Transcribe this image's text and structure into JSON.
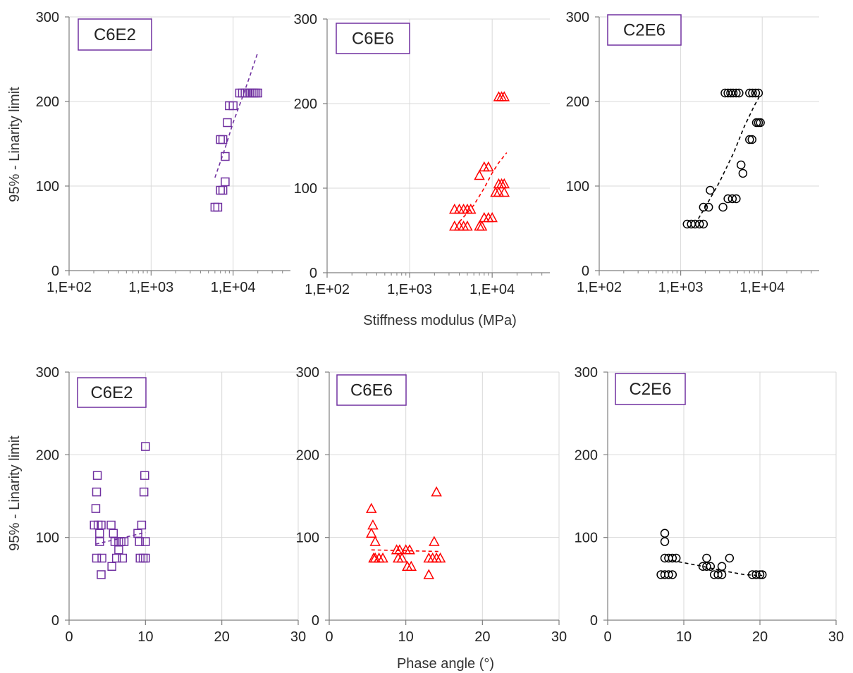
{
  "figure": {
    "ylabel_top": "95% - Linarity limit",
    "ylabel_bottom": "95% - Linarity limit",
    "xlabel_top": "Stiffness modulus (MPa)",
    "xlabel_bottom": "Phase angle (°)"
  },
  "chart_data": [
    {
      "type": "scatter",
      "title": "C6E2",
      "xscale": "log",
      "xlim": [
        100,
        50000
      ],
      "ylim": [
        0,
        300
      ],
      "xticks": [
        {
          "v": 100,
          "label": "1,E+02"
        },
        {
          "v": 1000,
          "label": "1,E+03"
        },
        {
          "v": 10000,
          "label": "1,E+04"
        }
      ],
      "yticks": [
        0,
        100,
        200,
        300
      ],
      "grid": true,
      "marker": "square",
      "color": "#7030a0",
      "points": [
        [
          6000,
          75
        ],
        [
          6500,
          75
        ],
        [
          7000,
          95
        ],
        [
          7500,
          95
        ],
        [
          7000,
          155
        ],
        [
          7500,
          155
        ],
        [
          8000,
          105
        ],
        [
          8000,
          135
        ],
        [
          8500,
          175
        ],
        [
          9000,
          195
        ],
        [
          10000,
          195
        ],
        [
          12000,
          210
        ],
        [
          13000,
          210
        ],
        [
          14000,
          210
        ],
        [
          15000,
          210
        ],
        [
          16000,
          210
        ],
        [
          17000,
          210
        ],
        [
          18000,
          210
        ],
        [
          19000,
          210
        ],
        [
          20000,
          210
        ]
      ],
      "trend": [
        [
          6000,
          110
        ],
        [
          8000,
          145
        ],
        [
          10000,
          175
        ],
        [
          13000,
          205
        ],
        [
          16000,
          230
        ],
        [
          20000,
          258
        ]
      ]
    },
    {
      "type": "scatter",
      "title": "C6E6",
      "xscale": "log",
      "xlim": [
        100,
        50000
      ],
      "ylim": [
        0,
        300
      ],
      "xticks": [
        {
          "v": 100,
          "label": "1,E+02"
        },
        {
          "v": 1000,
          "label": "1,E+03"
        },
        {
          "v": 10000,
          "label": "1,E+04"
        }
      ],
      "yticks": [
        0,
        100,
        200,
        300
      ],
      "grid": true,
      "marker": "triangle",
      "color": "#ff0000",
      "points": [
        [
          3500,
          55
        ],
        [
          4000,
          55
        ],
        [
          4500,
          55
        ],
        [
          5000,
          55
        ],
        [
          3500,
          75
        ],
        [
          4000,
          75
        ],
        [
          4500,
          75
        ],
        [
          5000,
          75
        ],
        [
          5500,
          75
        ],
        [
          7000,
          55
        ],
        [
          7500,
          55
        ],
        [
          8000,
          65
        ],
        [
          9000,
          65
        ],
        [
          10000,
          65
        ],
        [
          7000,
          115
        ],
        [
          8000,
          125
        ],
        [
          9000,
          125
        ],
        [
          11000,
          95
        ],
        [
          12000,
          95
        ],
        [
          14000,
          95
        ],
        [
          12000,
          105
        ],
        [
          13000,
          105
        ],
        [
          14000,
          105
        ],
        [
          12000,
          208
        ],
        [
          13000,
          208
        ],
        [
          14000,
          208
        ]
      ],
      "trend": [
        [
          4000,
          60
        ],
        [
          6000,
          80
        ],
        [
          8000,
          100
        ],
        [
          10000,
          118
        ],
        [
          12000,
          130
        ],
        [
          15000,
          142
        ]
      ]
    },
    {
      "type": "scatter",
      "title": "C2E6",
      "xscale": "log",
      "xlim": [
        100,
        50000
      ],
      "ylim": [
        0,
        300
      ],
      "xticks": [
        {
          "v": 100,
          "label": "1,E+02"
        },
        {
          "v": 1000,
          "label": "1,E+03"
        },
        {
          "v": 10000,
          "label": "1,E+04"
        }
      ],
      "yticks": [
        0,
        100,
        200,
        300
      ],
      "grid": true,
      "marker": "circle",
      "color": "#000000",
      "points": [
        [
          1200,
          55
        ],
        [
          1350,
          55
        ],
        [
          1500,
          55
        ],
        [
          1700,
          55
        ],
        [
          1900,
          55
        ],
        [
          1900,
          75
        ],
        [
          2200,
          75
        ],
        [
          2300,
          95
        ],
        [
          3300,
          75
        ],
        [
          3500,
          210
        ],
        [
          3800,
          210
        ],
        [
          4100,
          210
        ],
        [
          4400,
          210
        ],
        [
          4800,
          210
        ],
        [
          5200,
          210
        ],
        [
          3800,
          85
        ],
        [
          4300,
          85
        ],
        [
          4800,
          85
        ],
        [
          5500,
          125
        ],
        [
          5800,
          115
        ],
        [
          7000,
          155
        ],
        [
          7500,
          155
        ],
        [
          7000,
          210
        ],
        [
          7600,
          210
        ],
        [
          8300,
          210
        ],
        [
          9000,
          210
        ],
        [
          8500,
          175
        ],
        [
          9000,
          175
        ],
        [
          9500,
          175
        ]
      ],
      "trend": [
        [
          1500,
          55
        ],
        [
          2000,
          75
        ],
        [
          3000,
          105
        ],
        [
          4500,
          140
        ],
        [
          6000,
          170
        ],
        [
          8000,
          195
        ],
        [
          9500,
          208
        ]
      ]
    },
    {
      "type": "scatter",
      "title": "C6E2",
      "xscale": "linear",
      "xlim": [
        0,
        30
      ],
      "ylim": [
        0,
        300
      ],
      "xticks": [
        {
          "v": 0,
          "label": "0"
        },
        {
          "v": 10,
          "label": "10"
        },
        {
          "v": 20,
          "label": "20"
        },
        {
          "v": 30,
          "label": "30"
        }
      ],
      "yticks": [
        0,
        100,
        200,
        300
      ],
      "grid": true,
      "marker": "square",
      "color": "#7030a0",
      "points": [
        [
          3.3,
          115
        ],
        [
          3.5,
          135
        ],
        [
          3.6,
          75
        ],
        [
          3.6,
          155
        ],
        [
          3.7,
          175
        ],
        [
          3.8,
          115
        ],
        [
          4,
          105
        ],
        [
          4,
          95
        ],
        [
          4.2,
          115
        ],
        [
          4.3,
          75
        ],
        [
          4.2,
          55
        ],
        [
          5.5,
          115
        ],
        [
          5.8,
          105
        ],
        [
          5.6,
          65
        ],
        [
          6,
          95
        ],
        [
          6.2,
          75
        ],
        [
          6.5,
          85
        ],
        [
          6.5,
          95
        ],
        [
          6.8,
          95
        ],
        [
          7,
          75
        ],
        [
          7.2,
          95
        ],
        [
          9,
          105
        ],
        [
          9.2,
          95
        ],
        [
          9.5,
          115
        ],
        [
          9.3,
          75
        ],
        [
          9.7,
          75
        ],
        [
          10,
          95
        ],
        [
          9.8,
          155
        ],
        [
          9.9,
          175
        ],
        [
          10,
          210
        ],
        [
          10,
          75
        ]
      ],
      "trend": [
        [
          3.5,
          92
        ],
        [
          10,
          106
        ]
      ]
    },
    {
      "type": "scatter",
      "title": "C6E6",
      "xscale": "linear",
      "xlim": [
        0,
        30
      ],
      "ylim": [
        0,
        300
      ],
      "xticks": [
        {
          "v": 0,
          "label": "0"
        },
        {
          "v": 10,
          "label": "10"
        },
        {
          "v": 20,
          "label": "20"
        },
        {
          "v": 30,
          "label": "30"
        }
      ],
      "yticks": [
        0,
        100,
        200,
        300
      ],
      "grid": true,
      "marker": "triangle",
      "color": "#ff0000",
      "points": [
        [
          5.5,
          135
        ],
        [
          5.7,
          115
        ],
        [
          5.5,
          105
        ],
        [
          6,
          95
        ],
        [
          6,
          75
        ],
        [
          6.5,
          75
        ],
        [
          5.8,
          75
        ],
        [
          7,
          75
        ],
        [
          8.8,
          85
        ],
        [
          9.2,
          85
        ],
        [
          10,
          85
        ],
        [
          10.5,
          85
        ],
        [
          9,
          75
        ],
        [
          9.5,
          75
        ],
        [
          10.2,
          65
        ],
        [
          10.7,
          65
        ],
        [
          13,
          55
        ],
        [
          13,
          75
        ],
        [
          13.5,
          75
        ],
        [
          14,
          75
        ],
        [
          14.5,
          75
        ],
        [
          13.7,
          95
        ],
        [
          14,
          155
        ]
      ],
      "trend": [
        [
          5.5,
          85
        ],
        [
          14.5,
          83
        ]
      ]
    },
    {
      "type": "scatter",
      "title": "C2E6",
      "xscale": "linear",
      "xlim": [
        0,
        30
      ],
      "ylim": [
        0,
        300
      ],
      "xticks": [
        {
          "v": 0,
          "label": "0"
        },
        {
          "v": 10,
          "label": "10"
        },
        {
          "v": 20,
          "label": "20"
        },
        {
          "v": 30,
          "label": "30"
        }
      ],
      "yticks": [
        0,
        100,
        200,
        300
      ],
      "grid": true,
      "marker": "circle",
      "color": "#000000",
      "points": [
        [
          7,
          55
        ],
        [
          7.5,
          55
        ],
        [
          8,
          55
        ],
        [
          8.5,
          55
        ],
        [
          7.5,
          75
        ],
        [
          8,
          75
        ],
        [
          8.5,
          75
        ],
        [
          9,
          75
        ],
        [
          7.5,
          95
        ],
        [
          7.5,
          105
        ],
        [
          12.5,
          65
        ],
        [
          13,
          65
        ],
        [
          13,
          75
        ],
        [
          13.5,
          65
        ],
        [
          14,
          55
        ],
        [
          14.5,
          55
        ],
        [
          15,
          55
        ],
        [
          15,
          65
        ],
        [
          16,
          75
        ],
        [
          19,
          55
        ],
        [
          19.5,
          55
        ],
        [
          20,
          55
        ],
        [
          20.3,
          55
        ]
      ],
      "trend": [
        [
          8.5,
          72
        ],
        [
          12,
          66
        ],
        [
          15,
          60
        ],
        [
          18,
          55
        ],
        [
          20.3,
          54
        ]
      ]
    }
  ]
}
